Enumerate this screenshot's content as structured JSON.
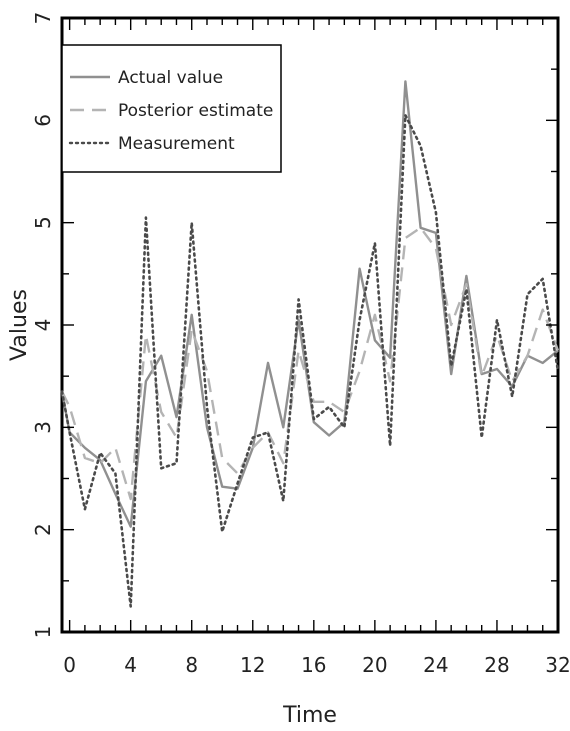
{
  "chart_data": {
    "type": "line",
    "xlabel": "Time",
    "ylabel": "Values",
    "xlim": [
      -0.5,
      32
    ],
    "ylim": [
      1,
      7
    ],
    "xticks": [
      0,
      4,
      8,
      12,
      16,
      20,
      24,
      28,
      32
    ],
    "yticks": [
      1,
      2,
      3,
      4,
      5,
      6,
      7
    ],
    "grid": false,
    "legend_position": "top-left",
    "x": [
      -0.5,
      0,
      1,
      2,
      3,
      4,
      5,
      6,
      7,
      8,
      9,
      10,
      11,
      12,
      13,
      14,
      15,
      16,
      17,
      18,
      19,
      20,
      21,
      22,
      23,
      24,
      25,
      26,
      27,
      28,
      29,
      30,
      31,
      32
    ],
    "series": [
      {
        "name": "Actual value",
        "style": "solid",
        "color": "#909090",
        "values": [
          3.35,
          2.95,
          2.8,
          2.68,
          2.35,
          2.03,
          3.45,
          3.7,
          3.1,
          4.1,
          3.0,
          2.42,
          2.4,
          2.8,
          3.63,
          3.0,
          4.05,
          3.05,
          2.92,
          3.05,
          4.55,
          3.85,
          3.68,
          6.38,
          4.95,
          4.9,
          3.52,
          4.48,
          3.52,
          3.57,
          3.4,
          3.7,
          3.63,
          3.75
        ]
      },
      {
        "name": "Posterior estimate",
        "style": "dashed",
        "color": "#b4b4b4",
        "values": [
          3.35,
          3.2,
          2.7,
          2.65,
          2.8,
          2.3,
          3.9,
          3.15,
          2.9,
          3.95,
          3.55,
          2.7,
          2.55,
          2.8,
          2.95,
          2.65,
          3.75,
          3.25,
          3.25,
          3.15,
          3.55,
          4.1,
          3.45,
          4.85,
          4.95,
          4.75,
          4.0,
          4.4,
          3.5,
          3.9,
          3.45,
          3.7,
          4.15,
          3.75
        ]
      },
      {
        "name": "Measurement",
        "style": "dotted",
        "color": "#4a4a4a",
        "values": [
          3.35,
          2.95,
          2.2,
          2.75,
          2.55,
          1.25,
          5.05,
          2.6,
          2.65,
          5.0,
          3.2,
          1.98,
          2.45,
          2.9,
          2.95,
          2.28,
          4.25,
          3.08,
          3.2,
          3.0,
          4.05,
          4.8,
          2.82,
          6.05,
          5.75,
          5.1,
          3.6,
          4.35,
          2.9,
          4.05,
          3.3,
          4.3,
          4.45,
          3.55
        ]
      }
    ]
  }
}
